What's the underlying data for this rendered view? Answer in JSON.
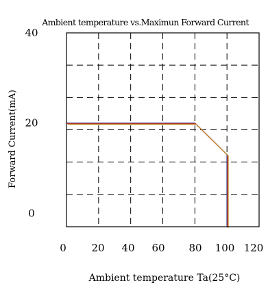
{
  "chart_data": {
    "type": "line",
    "title": "Ambient temperature vs.Maximun Forward Current",
    "xlabel": "Ambient temperature Ta(25°C)",
    "ylabel": "Forward Current(mA)",
    "x_ticks": [
      0,
      20,
      40,
      60,
      80,
      100,
      120
    ],
    "x_tick_labels": [
      "0",
      "20",
      "40",
      "60",
      "80",
      "100",
      "120"
    ],
    "y_ticks": [
      0,
      20,
      40
    ],
    "y_tick_labels": [
      "0",
      "20",
      "40"
    ],
    "xlim": [
      0,
      120
    ],
    "ylim": [
      -3,
      40
    ],
    "grid": true,
    "grid_style": "dashed",
    "series": [
      {
        "x": [
          0,
          80,
          100,
          100
        ],
        "y": [
          20,
          20,
          13,
          -3
        ],
        "color": "#1a237e"
      },
      {
        "x": [
          0,
          80,
          100,
          100
        ],
        "y": [
          20,
          20,
          13,
          -3
        ],
        "color": "#c62828"
      },
      {
        "x": [
          0,
          80,
          100,
          100
        ],
        "y": [
          20,
          20,
          13,
          -3
        ],
        "color": "#c08a2e"
      }
    ]
  }
}
